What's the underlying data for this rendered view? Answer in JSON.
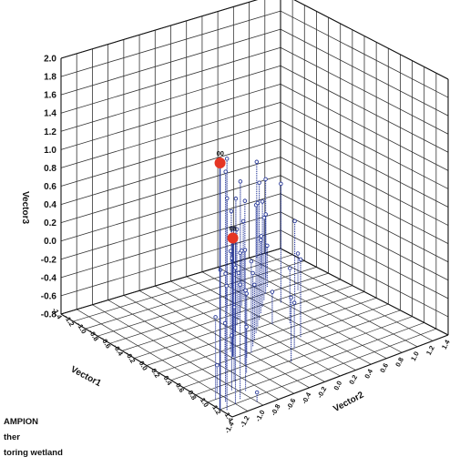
{
  "chart_data": {
    "type": "scatter3d",
    "title": "",
    "axis_labels": {
      "x": "Vector1",
      "y": "Vector2",
      "z": "Vector3"
    },
    "z_range": [
      -0.8,
      2.0
    ],
    "z_ticks": [
      "2.0",
      "1.8",
      "1.6",
      "1.4",
      "1.2",
      "1.0",
      "0.8",
      "0.6",
      "0.4",
      "0.2",
      "0.0",
      "-0.2",
      "-0.4",
      "-0.6",
      "-0.8"
    ],
    "x_ticks": [
      "-1.4",
      "-1.2",
      "-1.0",
      "-0.8",
      "-0.6",
      "-0.4",
      "-0.2",
      "0.0",
      "0.2",
      "0.4",
      "0.6",
      "0.8",
      "1.0",
      "1.2",
      "1.4"
    ],
    "y_ticks": [
      "-1.4",
      "-1.2",
      "-1.0",
      "-0.8",
      "-0.6",
      "-0.4",
      "-0.2",
      "0.0",
      "0.2",
      "0.4",
      "0.6",
      "0.8",
      "1.0",
      "1.2",
      "1.4"
    ],
    "grid": true,
    "colors": {
      "stem": "#2a3b9a",
      "highlight": "#e53524",
      "grid": "#333333"
    },
    "highlighted_points": [
      {
        "label": "00",
        "x": -1.2,
        "y": -1.4,
        "z": 1.9
      },
      {
        "label": "98",
        "x": -0.4,
        "y": -0.6,
        "z": 0.5
      }
    ],
    "points": [
      {
        "x": -1.3,
        "y": -1.0,
        "z": -0.7
      },
      {
        "x": -1.25,
        "y": -1.35,
        "z": 1.95
      },
      {
        "x": -1.2,
        "y": -1.2,
        "z": 1.0
      },
      {
        "x": -1.15,
        "y": -1.1,
        "z": 0.8
      },
      {
        "x": -1.1,
        "y": -1.25,
        "z": 0.6
      },
      {
        "x": -1.05,
        "y": -0.95,
        "z": 0.3
      },
      {
        "x": -1.0,
        "y": -1.3,
        "z": 0.1
      },
      {
        "x": -0.95,
        "y": -1.05,
        "z": -0.2
      },
      {
        "x": -0.9,
        "y": -1.2,
        "z": -0.5
      },
      {
        "x": -0.8,
        "y": -0.9,
        "z": 0.0
      },
      {
        "x": -0.75,
        "y": -0.7,
        "z": -0.3
      },
      {
        "x": -0.7,
        "y": -1.0,
        "z": 0.4
      },
      {
        "x": -0.6,
        "y": -0.6,
        "z": 0.45
      },
      {
        "x": -0.55,
        "y": -0.8,
        "z": 0.1
      },
      {
        "x": -0.5,
        "y": -0.5,
        "z": -0.1
      },
      {
        "x": -0.45,
        "y": -0.4,
        "z": 0.2
      },
      {
        "x": -0.4,
        "y": -0.7,
        "z": -0.4
      },
      {
        "x": -0.35,
        "y": -0.3,
        "z": 0.0
      },
      {
        "x": -0.3,
        "y": -0.55,
        "z": 0.3
      },
      {
        "x": -0.25,
        "y": -0.2,
        "z": -0.2
      },
      {
        "x": -0.2,
        "y": -0.45,
        "z": 0.15
      },
      {
        "x": -0.15,
        "y": -0.1,
        "z": 0.6
      },
      {
        "x": -0.1,
        "y": -0.35,
        "z": 0.4
      },
      {
        "x": -0.05,
        "y": 0.0,
        "z": 0.55
      },
      {
        "x": 0.0,
        "y": -0.25,
        "z": -0.1
      },
      {
        "x": 0.05,
        "y": 0.1,
        "z": 0.7
      },
      {
        "x": 0.1,
        "y": -0.15,
        "z": 0.25
      },
      {
        "x": 0.15,
        "y": 0.2,
        "z": 0.0
      },
      {
        "x": 0.2,
        "y": -0.05,
        "z": -0.3
      },
      {
        "x": 0.25,
        "y": 0.3,
        "z": 0.35
      },
      {
        "x": 0.3,
        "y": 0.05,
        "z": -0.5
      },
      {
        "x": 0.35,
        "y": 0.4,
        "z": 0.1
      },
      {
        "x": 0.4,
        "y": 0.15,
        "z": -0.2
      },
      {
        "x": 0.45,
        "y": 0.5,
        "z": 0.45
      },
      {
        "x": 0.5,
        "y": 0.25,
        "z": 0.05
      },
      {
        "x": 0.55,
        "y": 0.6,
        "z": -0.35
      },
      {
        "x": 0.6,
        "y": 0.35,
        "z": 0.2
      },
      {
        "x": 0.7,
        "y": 0.7,
        "z": -0.1
      },
      {
        "x": 0.8,
        "y": 0.45,
        "z": 0.3
      },
      {
        "x": 0.9,
        "y": 0.8,
        "z": -0.45
      },
      {
        "x": 1.0,
        "y": 0.55,
        "z": 0.0
      },
      {
        "x": 1.1,
        "y": 0.9,
        "z": 0.25
      },
      {
        "x": 1.2,
        "y": 0.65,
        "z": -0.25
      },
      {
        "x": -0.85,
        "y": -0.2,
        "z": -0.1
      },
      {
        "x": -0.65,
        "y": 0.0,
        "z": -0.3
      },
      {
        "x": -0.2,
        "y": 0.3,
        "z": -0.2
      },
      {
        "x": 0.1,
        "y": 0.6,
        "z": 0.1
      },
      {
        "x": 0.3,
        "y": 0.8,
        "z": -0.4
      },
      {
        "x": -0.5,
        "y": 0.2,
        "z": 0.05
      },
      {
        "x": 0.6,
        "y": 0.1,
        "z": 0.6
      },
      {
        "x": 0.75,
        "y": 0.3,
        "z": -0.15
      },
      {
        "x": 0.2,
        "y": 0.5,
        "z": 0.5
      },
      {
        "x": -0.1,
        "y": 0.15,
        "z": -0.45
      },
      {
        "x": 0.45,
        "y": 0.0,
        "z": 0.4
      }
    ]
  },
  "legend_lines": [
    "AMPION",
    "ther",
    "toring wetland"
  ]
}
